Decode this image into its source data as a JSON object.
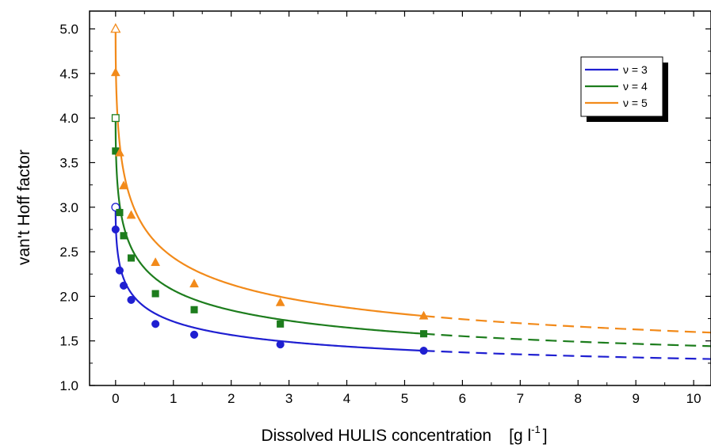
{
  "chart_data": {
    "type": "line",
    "xlabel_main": "Dissolved HULIS concentration",
    "xlabel_unit_left": "[g l",
    "xlabel_unit_exp": "-1",
    "xlabel_unit_right": "]",
    "ylabel": "van't Hoff factor",
    "xlim": [
      -0.45,
      10.3
    ],
    "ylim": [
      1.0,
      5.2
    ],
    "xticks": [
      0,
      1,
      2,
      3,
      4,
      5,
      6,
      7,
      8,
      9,
      10
    ],
    "yticks": [
      1.0,
      1.5,
      2.0,
      2.5,
      3.0,
      3.5,
      4.0,
      4.5,
      5.0
    ],
    "xtick_labels": [
      "0",
      "1",
      "2",
      "3",
      "4",
      "5",
      "6",
      "7",
      "8",
      "9",
      "10"
    ],
    "ytick_labels": [
      "1.0",
      "1.5",
      "2.0",
      "2.5",
      "3.0",
      "3.5",
      "4.0",
      "4.5",
      "5.0"
    ],
    "legend_position": "top-right",
    "fit_solid_range": [
      0,
      5.33
    ],
    "fit_dashed_range": [
      5.33,
      10.3
    ],
    "series": [
      {
        "name": "ν = 3",
        "color": "#1f1fd1",
        "marker": "circle",
        "nu": 3,
        "open_point": {
          "x": 0.0,
          "y": 3.0
        },
        "x": [
          0.0,
          0.07,
          0.14,
          0.27,
          0.69,
          1.36,
          2.85,
          5.33
        ],
        "y": [
          2.75,
          2.29,
          2.12,
          1.96,
          1.69,
          1.57,
          1.46,
          1.39
        ]
      },
      {
        "name": "ν = 4",
        "color": "#1d7d1d",
        "marker": "square",
        "nu": 4,
        "open_point": {
          "x": 0.0,
          "y": 4.0
        },
        "x": [
          0.0,
          0.07,
          0.14,
          0.27,
          0.69,
          1.36,
          2.85,
          5.33
        ],
        "y": [
          3.63,
          2.94,
          2.68,
          2.43,
          2.03,
          1.85,
          1.69,
          1.58
        ]
      },
      {
        "name": "ν = 5",
        "color": "#f28a1a",
        "marker": "triangle",
        "nu": 5,
        "open_point": {
          "x": 0.0,
          "y": 5.0
        },
        "x": [
          0.0,
          0.07,
          0.14,
          0.27,
          0.69,
          1.36,
          2.85,
          5.33
        ],
        "y": [
          4.51,
          3.61,
          3.24,
          2.91,
          2.38,
          2.14,
          1.93,
          1.78
        ]
      }
    ]
  }
}
